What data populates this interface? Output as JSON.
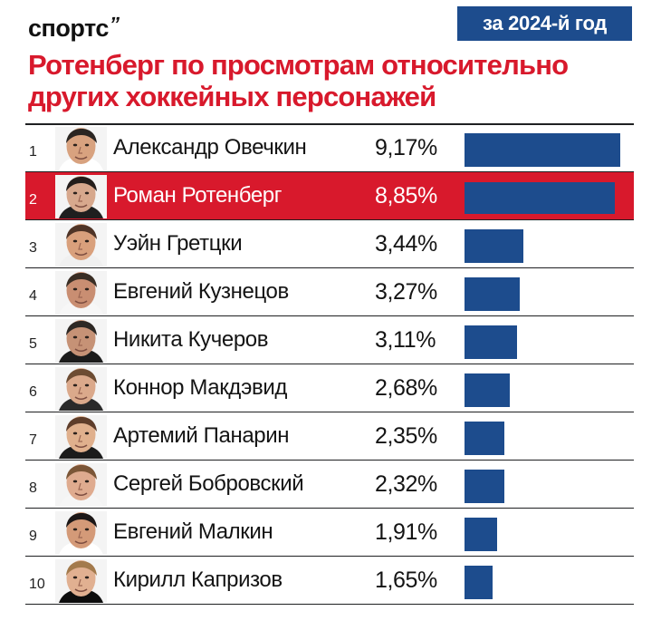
{
  "brand": {
    "logo": "спортс",
    "logo_mark": "’’"
  },
  "badge": "за 2024-й год",
  "title_lines": [
    "Ротенберг по просмотрам относительно",
    "других хоккейных персонажей"
  ],
  "colors": {
    "title": "#d8192c",
    "highlight_row": "#d8192c",
    "bar": "#1d4c8d",
    "badge": "#1d4c8d"
  },
  "chart_data": {
    "type": "bar",
    "orientation": "horizontal",
    "title": "Ротенберг по просмотрам относительно других хоккейных персонажей",
    "categories": [
      "Александр Овечкин",
      "Роман Ротенберг",
      "Уэйн Гретцки",
      "Евгений Кузнецов",
      "Никита Кучеров",
      "Коннор Макдэвид",
      "Артемий Панарин",
      "Сергей Бобровский",
      "Евгений Малкин",
      "Кирилл Капризов"
    ],
    "ranks": [
      "1",
      "2",
      "3",
      "4",
      "5",
      "6",
      "7",
      "8",
      "9",
      "10"
    ],
    "values": [
      9.17,
      8.85,
      3.44,
      3.27,
      3.11,
      2.68,
      2.35,
      2.32,
      1.91,
      1.65
    ],
    "value_labels": [
      "9,17%",
      "8,85%",
      "3,44%",
      "3,27%",
      "3,11%",
      "2,68%",
      "2,35%",
      "2,32%",
      "1,91%",
      "1,65%"
    ],
    "highlighted_index": 1,
    "unit": "%",
    "xlim": [
      0,
      9.17
    ],
    "grid": false,
    "legend": "none"
  }
}
